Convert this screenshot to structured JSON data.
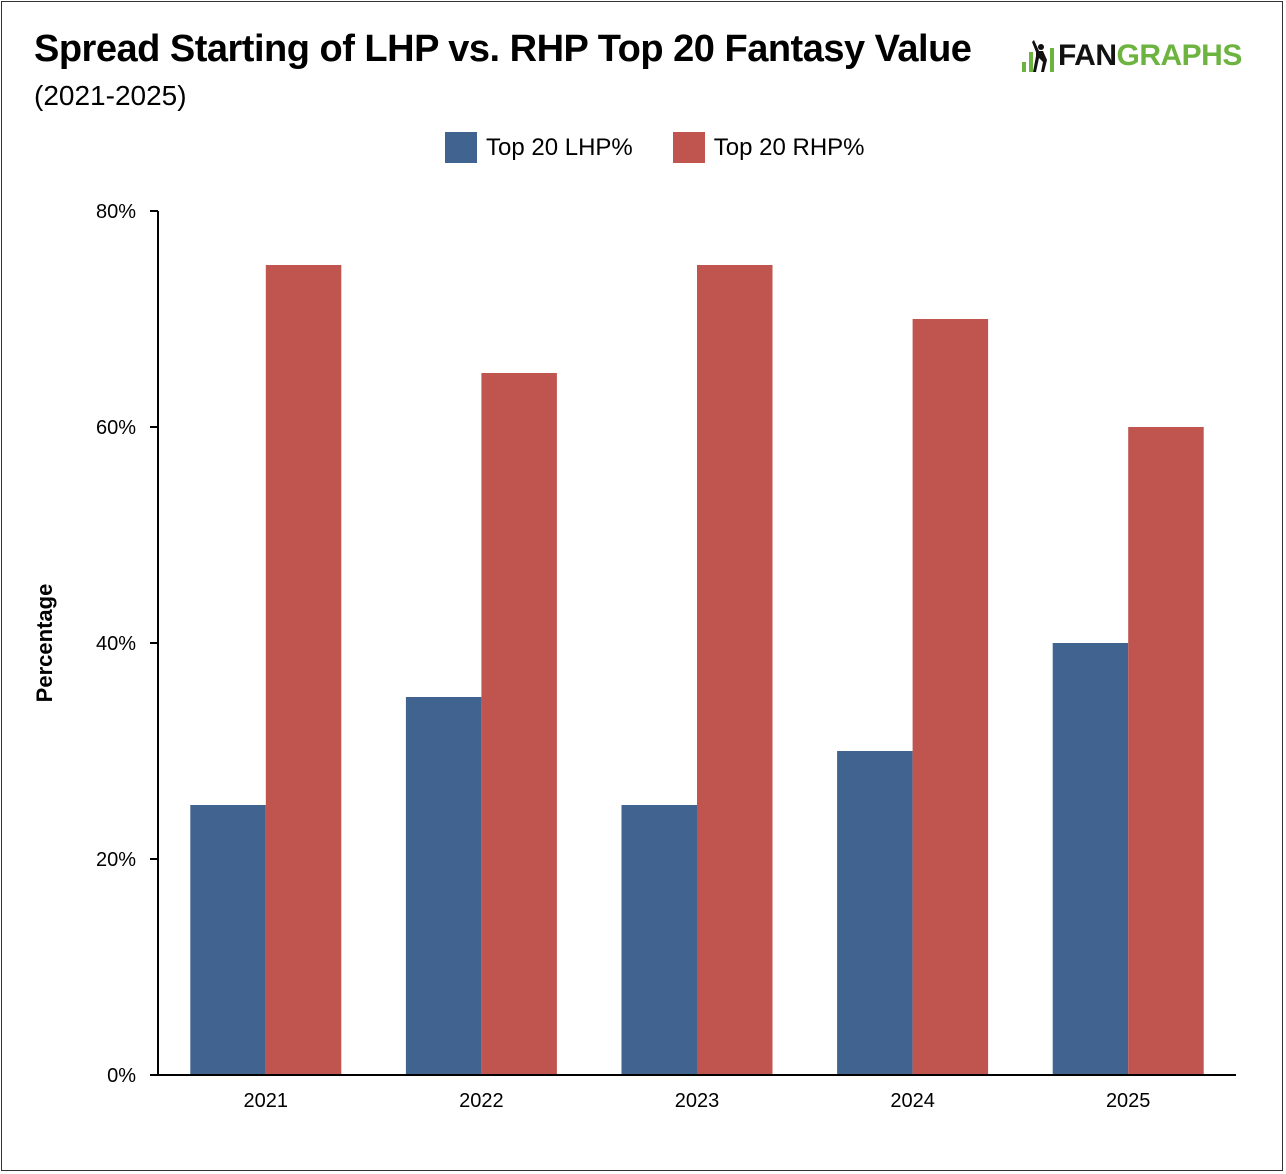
{
  "header": {
    "title": "Spread Starting of LHP vs. RHP Top 20 Fantasy Value",
    "subtitle": "(2021-2025)",
    "logo_fan": "FAN",
    "logo_graphs": "GRAPHS"
  },
  "colors": {
    "lhp": "#40638f",
    "rhp": "#c0544f",
    "logo_green": "#6cb33f"
  },
  "chart_data": {
    "type": "bar",
    "title": "Spread Starting of LHP vs. RHP Top 20 Fantasy Value",
    "subtitle": "(2021-2025)",
    "categories": [
      "2021",
      "2022",
      "2023",
      "2024",
      "2025"
    ],
    "series": [
      {
        "name": "Top 20 LHP%",
        "values": [
          25,
          35,
          25,
          30,
          40
        ],
        "color": "#40638f"
      },
      {
        "name": "Top 20 RHP%",
        "values": [
          75,
          65,
          75,
          70,
          60
        ],
        "color": "#c0544f"
      }
    ],
    "xlabel": "",
    "ylabel": "Percentage",
    "ylim": [
      0,
      80
    ],
    "yticks": [
      "0%",
      "20%",
      "40%",
      "60%",
      "80%"
    ],
    "ytick_values": [
      0,
      20,
      40,
      60,
      80
    ],
    "grid": false,
    "legend": "top-center"
  }
}
